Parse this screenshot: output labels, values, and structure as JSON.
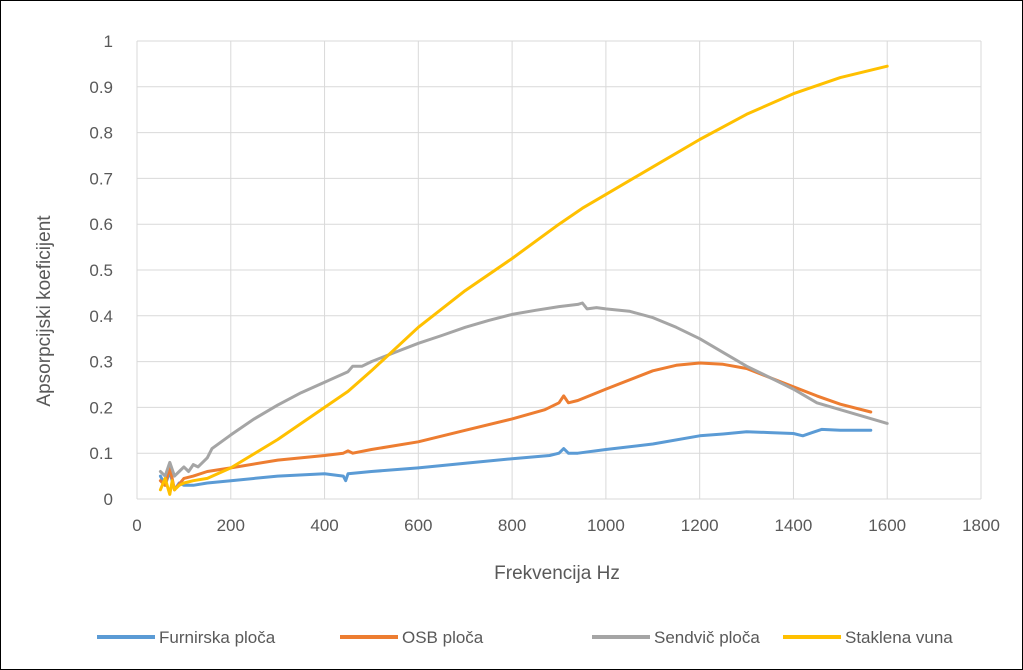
{
  "chart_data": {
    "type": "line",
    "title": "",
    "xlabel": "Frekvencija Hz",
    "ylabel": "Apsorpcijski koeficijent",
    "xlim": [
      0,
      1800
    ],
    "ylim": [
      0,
      1
    ],
    "xticks": [
      0,
      200,
      400,
      600,
      800,
      1000,
      1200,
      1400,
      1600,
      1800
    ],
    "yticks": [
      0,
      0.1,
      0.2,
      0.3,
      0.4,
      0.5,
      0.6,
      0.7,
      0.8,
      0.9,
      1
    ],
    "ytick_labels": [
      "0",
      "0.1",
      "0.2",
      "0.3",
      "0.4",
      "0.5",
      "0.6",
      "0.7",
      "0.8",
      "0.9",
      "1"
    ],
    "grid": true,
    "legend_position": "bottom",
    "series": [
      {
        "name": "Furnirska ploča",
        "color": "#5b9bd5",
        "x": [
          50,
          60,
          70,
          80,
          90,
          100,
          120,
          150,
          200,
          300,
          400,
          440,
          445,
          450,
          500,
          600,
          700,
          800,
          880,
          900,
          910,
          920,
          940,
          1000,
          1100,
          1200,
          1250,
          1300,
          1350,
          1400,
          1420,
          1440,
          1460,
          1500,
          1565
        ],
        "y": [
          0.05,
          0.03,
          0.06,
          0.02,
          0.035,
          0.03,
          0.03,
          0.035,
          0.04,
          0.05,
          0.055,
          0.05,
          0.04,
          0.055,
          0.06,
          0.068,
          0.078,
          0.088,
          0.095,
          0.1,
          0.11,
          0.1,
          0.1,
          0.108,
          0.12,
          0.138,
          0.142,
          0.147,
          0.145,
          0.143,
          0.138,
          0.145,
          0.152,
          0.15,
          0.15
        ]
      },
      {
        "name": "OSB ploča",
        "color": "#ed7d31",
        "x": [
          50,
          60,
          70,
          80,
          100,
          120,
          150,
          200,
          300,
          400,
          440,
          450,
          460,
          500,
          600,
          700,
          800,
          870,
          900,
          910,
          920,
          940,
          1000,
          1100,
          1150,
          1200,
          1250,
          1300,
          1350,
          1400,
          1450,
          1500,
          1565
        ],
        "y": [
          0.04,
          0.03,
          0.07,
          0.02,
          0.045,
          0.05,
          0.06,
          0.068,
          0.085,
          0.095,
          0.1,
          0.105,
          0.1,
          0.108,
          0.125,
          0.15,
          0.175,
          0.195,
          0.21,
          0.225,
          0.21,
          0.215,
          0.24,
          0.28,
          0.292,
          0.297,
          0.294,
          0.285,
          0.265,
          0.245,
          0.225,
          0.207,
          0.19
        ]
      },
      {
        "name": "Sendvič ploča",
        "color": "#a5a5a5",
        "x": [
          50,
          60,
          70,
          80,
          90,
          100,
          110,
          120,
          130,
          140,
          150,
          160,
          200,
          250,
          300,
          350,
          400,
          450,
          460,
          480,
          500,
          550,
          600,
          650,
          700,
          750,
          800,
          850,
          900,
          940,
          950,
          960,
          980,
          1000,
          1050,
          1100,
          1150,
          1200,
          1250,
          1300,
          1350,
          1400,
          1450,
          1500,
          1550,
          1600
        ],
        "y": [
          0.06,
          0.05,
          0.08,
          0.05,
          0.06,
          0.07,
          0.06,
          0.075,
          0.07,
          0.08,
          0.09,
          0.11,
          0.14,
          0.175,
          0.205,
          0.232,
          0.255,
          0.278,
          0.29,
          0.29,
          0.3,
          0.32,
          0.34,
          0.357,
          0.375,
          0.39,
          0.403,
          0.412,
          0.42,
          0.425,
          0.428,
          0.415,
          0.418,
          0.415,
          0.41,
          0.396,
          0.375,
          0.35,
          0.32,
          0.29,
          0.265,
          0.24,
          0.21,
          0.195,
          0.18,
          0.165
        ]
      },
      {
        "name": "Staklena vuna",
        "color": "#ffc000",
        "x": [
          50,
          60,
          70,
          75,
          80,
          90,
          100,
          120,
          150,
          200,
          300,
          400,
          450,
          500,
          600,
          700,
          800,
          900,
          950,
          1000,
          1100,
          1200,
          1300,
          1400,
          1500,
          1600
        ],
        "y": [
          0.02,
          0.045,
          0.01,
          0.04,
          0.02,
          0.03,
          0.035,
          0.04,
          0.045,
          0.068,
          0.13,
          0.2,
          0.235,
          0.28,
          0.375,
          0.455,
          0.525,
          0.6,
          0.635,
          0.665,
          0.725,
          0.785,
          0.84,
          0.885,
          0.92,
          0.945
        ]
      }
    ]
  }
}
